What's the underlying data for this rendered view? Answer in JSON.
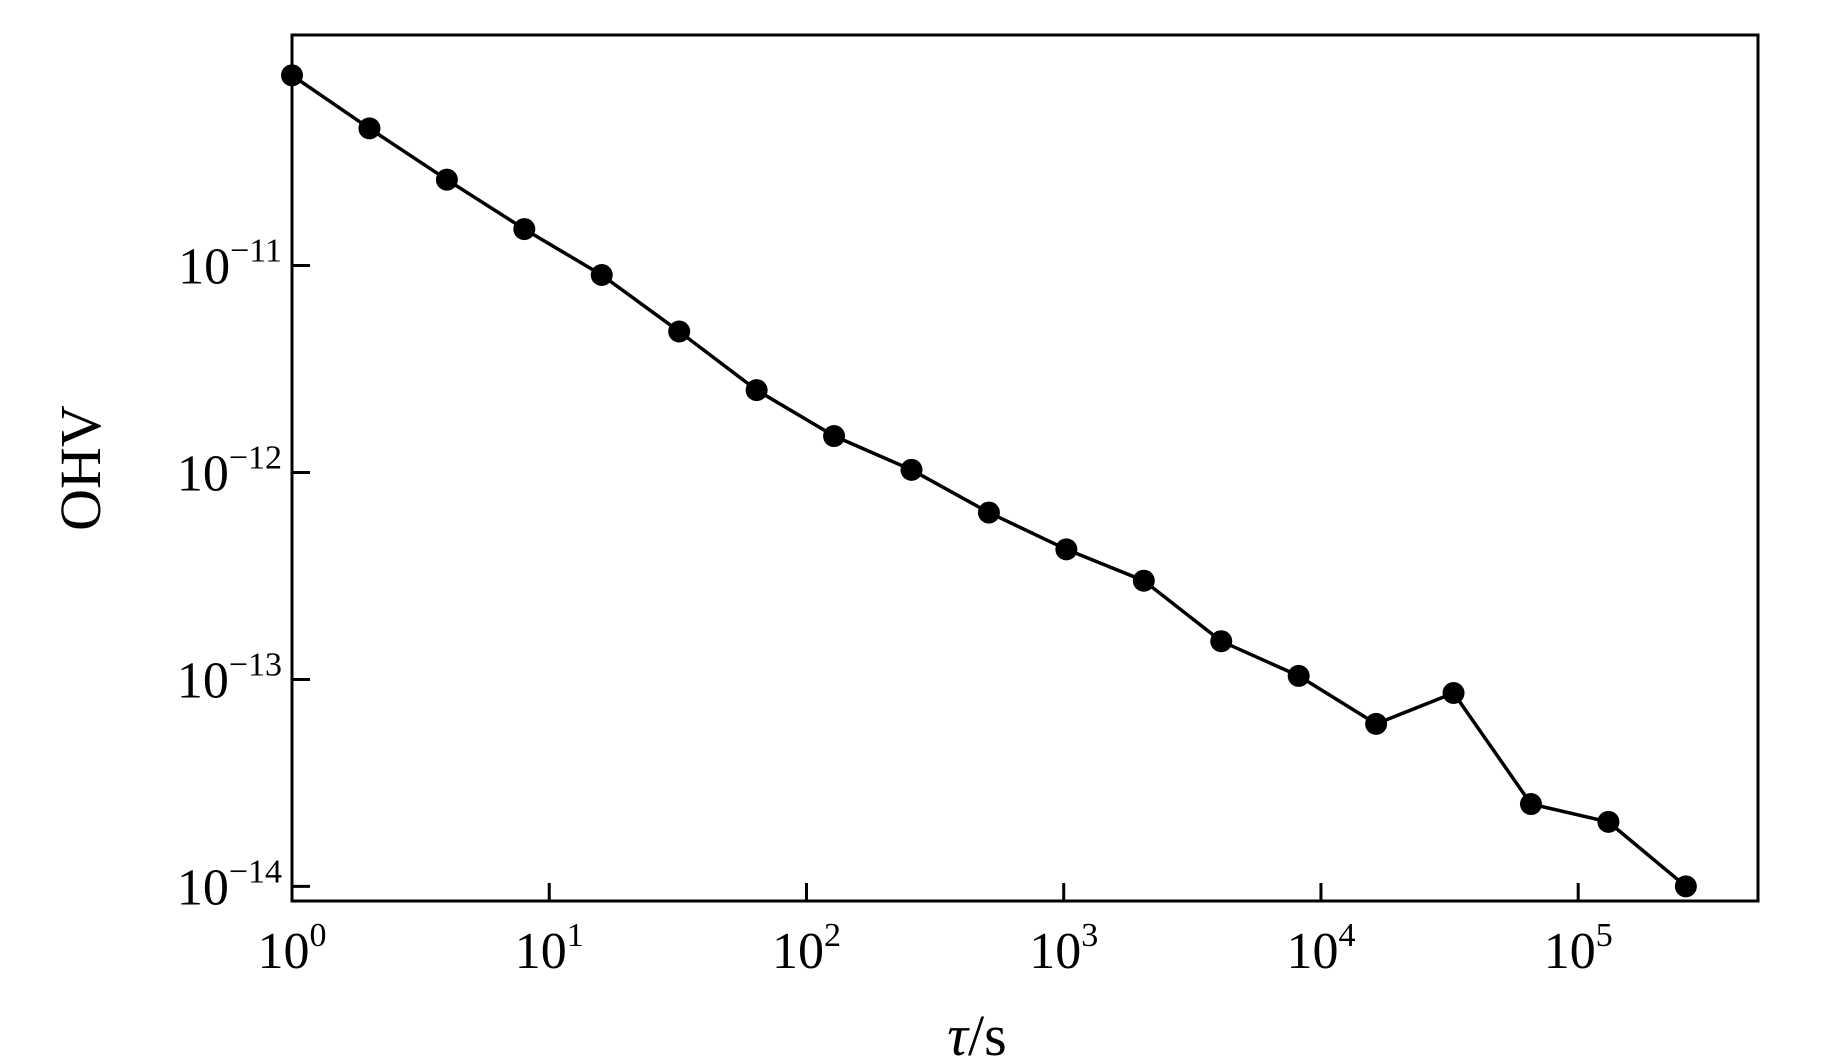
{
  "chart_data": {
    "type": "line",
    "xlabel_symbol": "τ",
    "xlabel_unit": "/s",
    "ylabel": "OHV",
    "x_scale": "log",
    "y_scale": "log",
    "xlim": [
      1,
      500000
    ],
    "ylim": [
      8.5e-15,
      1.3e-10
    ],
    "grid": false,
    "x_ticks": [
      {
        "base": "10",
        "exp": "0",
        "value": 1
      },
      {
        "base": "10",
        "exp": "1",
        "value": 10
      },
      {
        "base": "10",
        "exp": "2",
        "value": 100
      },
      {
        "base": "10",
        "exp": "3",
        "value": 1000
      },
      {
        "base": "10",
        "exp": "4",
        "value": 10000
      },
      {
        "base": "10",
        "exp": "5",
        "value": 100000
      }
    ],
    "y_ticks": [
      {
        "base": "10",
        "exp": "−14",
        "value": 1e-14
      },
      {
        "base": "10",
        "exp": "−13",
        "value": 1e-13
      },
      {
        "base": "10",
        "exp": "−12",
        "value": 1e-12
      },
      {
        "base": "10",
        "exp": "−11",
        "value": 1e-11
      }
    ],
    "series": [
      {
        "marker": "circle",
        "color": "#000000",
        "points": [
          {
            "x": 1,
            "y": 8.3e-11
          },
          {
            "x": 2,
            "y": 4.6e-11
          },
          {
            "x": 4,
            "y": 2.6e-11
          },
          {
            "x": 8,
            "y": 1.5e-11
          },
          {
            "x": 16,
            "y": 9e-12
          },
          {
            "x": 32,
            "y": 4.8e-12
          },
          {
            "x": 64,
            "y": 2.5e-12
          },
          {
            "x": 128,
            "y": 1.5e-12
          },
          {
            "x": 256,
            "y": 1.03e-12
          },
          {
            "x": 512,
            "y": 6.4e-13
          },
          {
            "x": 1024,
            "y": 4.25e-13
          },
          {
            "x": 2048,
            "y": 3e-13
          },
          {
            "x": 4096,
            "y": 1.53e-13
          },
          {
            "x": 8192,
            "y": 1.04e-13
          },
          {
            "x": 16384,
            "y": 6.1e-14
          },
          {
            "x": 32768,
            "y": 8.6e-14
          },
          {
            "x": 65536,
            "y": 2.5e-14
          },
          {
            "x": 131072,
            "y": 2.05e-14
          },
          {
            "x": 262144,
            "y": 1e-14
          }
        ]
      }
    ]
  }
}
